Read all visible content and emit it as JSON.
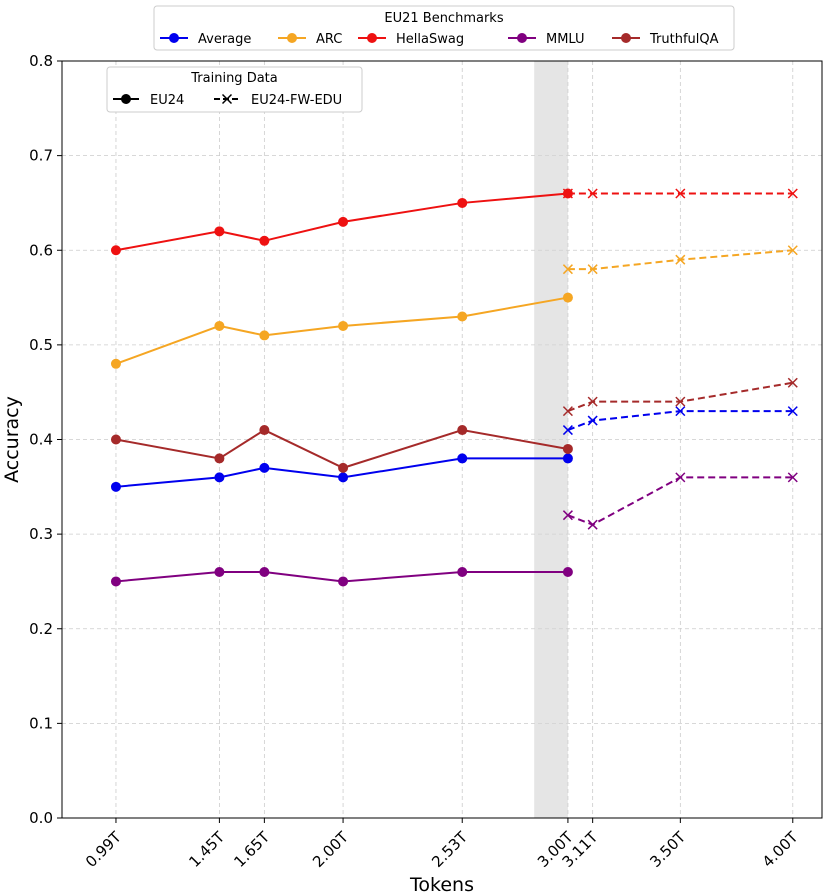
{
  "chart_data": {
    "type": "line",
    "xlabel": "Tokens",
    "ylabel": "Accuracy",
    "ylim": [
      0.0,
      0.8
    ],
    "yticks": [
      "0.0",
      "0.1",
      "0.2",
      "0.3",
      "0.4",
      "0.5",
      "0.6",
      "0.7",
      "0.8"
    ],
    "x_positions": [
      0.99,
      1.45,
      1.65,
      2.0,
      2.53,
      3.0,
      3.11,
      3.5,
      4.0
    ],
    "x_tick_labels": [
      "0.99T",
      "1.45T",
      "1.65T",
      "2.00T",
      "2.53T",
      "3.00T",
      "3.11T",
      "3.50T",
      "4.00T"
    ],
    "xlim": [
      0.75,
      4.13
    ],
    "shaded_region": [
      2.85,
      3.0
    ],
    "grid": true,
    "legend_benchmarks": {
      "title": "EU21 Benchmarks",
      "position": "top-center outside"
    },
    "legend_training": {
      "title": "Training Data",
      "position": "top-left",
      "entries": [
        {
          "label": "EU24",
          "style": "solid",
          "marker": "circle"
        },
        {
          "label": "EU24-FW-EDU",
          "style": "dashed",
          "marker": "x"
        }
      ]
    },
    "series": [
      {
        "name": "Average",
        "color": "#0000ee",
        "eu24": {
          "x": [
            0.99,
            1.45,
            1.65,
            2.0,
            2.53,
            3.0
          ],
          "y": [
            0.35,
            0.36,
            0.37,
            0.36,
            0.38,
            0.38
          ]
        },
        "fwedu": {
          "x": [
            3.0,
            3.11,
            3.5,
            4.0
          ],
          "y": [
            0.41,
            0.42,
            0.43,
            0.43
          ]
        }
      },
      {
        "name": "ARC",
        "color": "#f5a623",
        "eu24": {
          "x": [
            0.99,
            1.45,
            1.65,
            2.0,
            2.53,
            3.0
          ],
          "y": [
            0.48,
            0.52,
            0.51,
            0.52,
            0.53,
            0.55
          ]
        },
        "fwedu": {
          "x": [
            3.0,
            3.11,
            3.5,
            4.0
          ],
          "y": [
            0.58,
            0.58,
            0.59,
            0.6
          ]
        }
      },
      {
        "name": "HellaSwag",
        "color": "#ee1111",
        "eu24": {
          "x": [
            0.99,
            1.45,
            1.65,
            2.0,
            2.53,
            3.0
          ],
          "y": [
            0.6,
            0.62,
            0.61,
            0.63,
            0.65,
            0.66
          ]
        },
        "fwedu": {
          "x": [
            3.0,
            3.11,
            3.5,
            4.0
          ],
          "y": [
            0.66,
            0.66,
            0.66,
            0.66
          ]
        }
      },
      {
        "name": "MMLU",
        "color": "#800080",
        "eu24": {
          "x": [
            0.99,
            1.45,
            1.65,
            2.0,
            2.53,
            3.0
          ],
          "y": [
            0.25,
            0.26,
            0.26,
            0.25,
            0.26,
            0.26
          ]
        },
        "fwedu": {
          "x": [
            3.0,
            3.11,
            3.5,
            4.0
          ],
          "y": [
            0.32,
            0.31,
            0.36,
            0.36
          ]
        }
      },
      {
        "name": "TruthfulQA",
        "color": "#a52a2a",
        "eu24": {
          "x": [
            0.99,
            1.45,
            1.65,
            2.0,
            2.53,
            3.0
          ],
          "y": [
            0.4,
            0.38,
            0.41,
            0.37,
            0.41,
            0.39
          ]
        },
        "fwedu": {
          "x": [
            3.0,
            3.11,
            3.5,
            4.0
          ],
          "y": [
            0.43,
            0.44,
            0.44,
            0.46
          ]
        }
      }
    ]
  }
}
